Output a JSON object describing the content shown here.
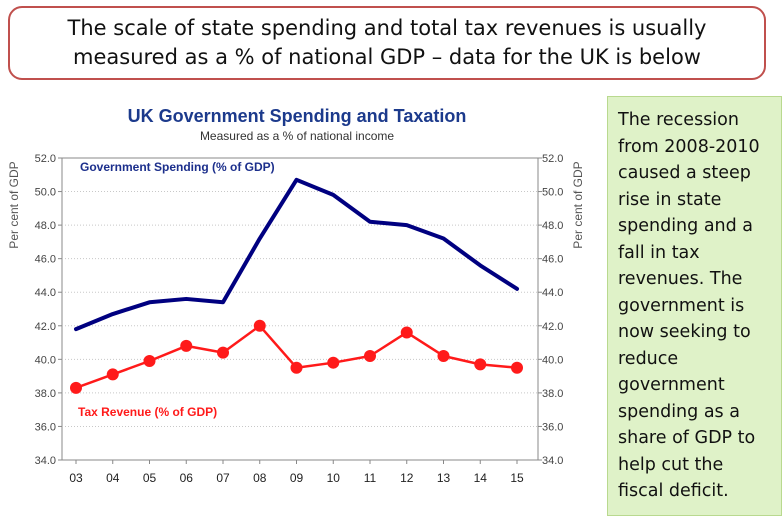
{
  "header": {
    "text": "The scale of state spending and total tax revenues is usually\nmeasured as a % of national GDP – data for the UK is below"
  },
  "side_note": {
    "text": "The recession from 2008-2010 caused a steep rise in state spending and a fall in tax revenues. The government is now seeking to reduce government spending as a share of GDP to help cut the fiscal deficit."
  },
  "colors": {
    "spending": "#000080",
    "revenue": "#ff1a1a",
    "frame": "#c0504d",
    "note_bg": "#dff2c8"
  },
  "chart_data": {
    "type": "line",
    "title": "UK Government Spending and Taxation",
    "subtitle": "Measured as a % of national income",
    "ylabel_left": "Per cent of GDP",
    "ylabel_right": "Per cent of GDP",
    "categories": [
      "03",
      "04",
      "05",
      "06",
      "07",
      "08",
      "09",
      "10",
      "11",
      "12",
      "13",
      "14",
      "15"
    ],
    "ylim": [
      34,
      52
    ],
    "yticks": [
      "34.0",
      "36.0",
      "38.0",
      "40.0",
      "42.0",
      "44.0",
      "46.0",
      "48.0",
      "50.0",
      "52.0"
    ],
    "series": [
      {
        "name": "Government Spending (% of GDP)",
        "values": [
          41.8,
          42.7,
          43.4,
          43.6,
          43.4,
          47.2,
          50.7,
          49.8,
          48.2,
          48.0,
          47.2,
          45.6,
          44.2
        ]
      },
      {
        "name": "Tax Revenue (% of GDP)",
        "values": [
          38.3,
          39.1,
          39.9,
          40.8,
          40.4,
          42.0,
          39.5,
          39.8,
          40.2,
          41.6,
          40.2,
          39.7,
          39.5
        ]
      }
    ]
  }
}
